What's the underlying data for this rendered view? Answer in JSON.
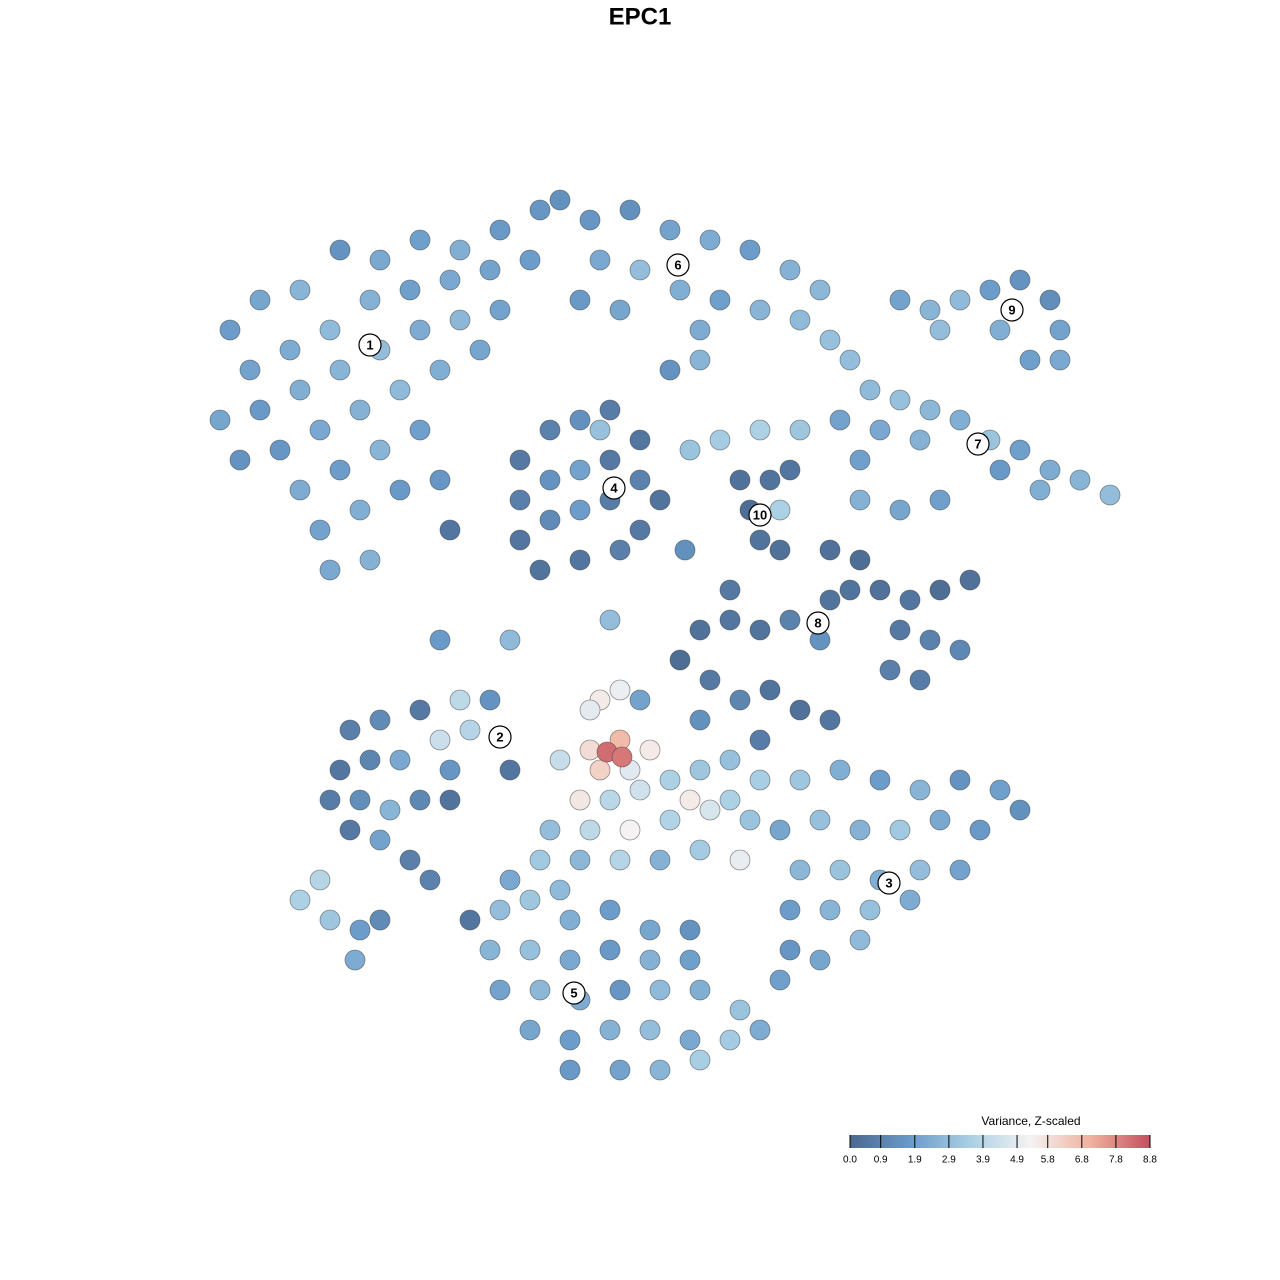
{
  "chart_data": {
    "type": "scatter",
    "title": "EPC1",
    "xlim": [
      0,
      128
    ],
    "ylim": [
      0,
      128
    ],
    "colorbar": {
      "title": "Variance, Z-scaled",
      "clim": [
        0,
        8.8
      ],
      "ticks": [
        {
          "value": 0,
          "label": "0.0"
        },
        0.9,
        1.9,
        2.9,
        3.9,
        4.9,
        5.8,
        6.8,
        7.8,
        8.8
      ],
      "colorscale": [
        "#4a6890",
        "#6a9bc9",
        "#a9cfe4",
        "#f4f3f3",
        "#f0b29e",
        "#c4505f"
      ]
    },
    "clusters": [
      {
        "label": "1",
        "x": 37,
        "y": 93.5
      },
      {
        "label": "2",
        "x": 50,
        "y": 54.3
      },
      {
        "label": "3",
        "x": 88.9,
        "y": 39.7
      },
      {
        "label": "4",
        "x": 61.4,
        "y": 79.2
      },
      {
        "label": "5",
        "x": 57.4,
        "y": 28.7
      },
      {
        "label": "6",
        "x": 67.8,
        "y": 101.5
      },
      {
        "label": "7",
        "x": 97.8,
        "y": 83.6
      },
      {
        "label": "8",
        "x": 81.8,
        "y": 65.7
      },
      {
        "label": "9",
        "x": 101.2,
        "y": 97
      },
      {
        "label": "10",
        "x": 76,
        "y": 76.5
      }
    ],
    "x": [
      23,
      26,
      30,
      34,
      38,
      42,
      46,
      50,
      54,
      56,
      25,
      29,
      33,
      37,
      41,
      45,
      49,
      53,
      22,
      26,
      30,
      34,
      38,
      42,
      46,
      50,
      28,
      32,
      36,
      40,
      44,
      48,
      30,
      34,
      38,
      42,
      32,
      36,
      40,
      33,
      37,
      24,
      44,
      59,
      63,
      67,
      71,
      75,
      79,
      82,
      60,
      64,
      68,
      72,
      76,
      80,
      83,
      58,
      62,
      70,
      85,
      67,
      70,
      90,
      93,
      96,
      99,
      102,
      105,
      106,
      100,
      94,
      103,
      106,
      87,
      90,
      93,
      96,
      99,
      102,
      105,
      108,
      111,
      88,
      92,
      100,
      104,
      86,
      69,
      72,
      76,
      80,
      84,
      86,
      90,
      94,
      52,
      55,
      58,
      61,
      64,
      52,
      55,
      58,
      61,
      64,
      66,
      52,
      55,
      58,
      61,
      64,
      54,
      58,
      62,
      60,
      74,
      77,
      79,
      75,
      78,
      76,
      78,
      83,
      86,
      85,
      88,
      91,
      94,
      97,
      90,
      93,
      96,
      89,
      92,
      70,
      73,
      76,
      79,
      82,
      68,
      71,
      74,
      77,
      80,
      83,
      76,
      83,
      35,
      38,
      42,
      46,
      49,
      34,
      37,
      40,
      44,
      47,
      33,
      36,
      39,
      42,
      35,
      38,
      41,
      51,
      45,
      56,
      59,
      62,
      65,
      60,
      63,
      58,
      61,
      64,
      67,
      70,
      73,
      76,
      55,
      59,
      63,
      67,
      71,
      75,
      54,
      58,
      62,
      66,
      70,
      74,
      51,
      56,
      60,
      62,
      59,
      64,
      70,
      73,
      69,
      60.7,
      62.2,
      80,
      84,
      88,
      92,
      96,
      100,
      102,
      78,
      82,
      86,
      90,
      94,
      98,
      80,
      84,
      88,
      92,
      96,
      79,
      83,
      87,
      91,
      79,
      82,
      86,
      78,
      50,
      53,
      57,
      61,
      65,
      69,
      49,
      53,
      57,
      61,
      65,
      69,
      50,
      54,
      58,
      62,
      66,
      70,
      74,
      53,
      57,
      61,
      65,
      69,
      73,
      57,
      62,
      66,
      70,
      76,
      30,
      33,
      36,
      38,
      35.5,
      32,
      45,
      43,
      47,
      45,
      51,
      44,
      61,
      73,
      68.5
    ],
    "y": [
      95,
      98,
      99,
      103,
      102,
      104,
      103,
      105,
      107,
      108,
      91,
      93,
      95,
      98,
      99,
      100,
      101,
      102,
      86,
      87,
      89,
      91,
      93,
      95,
      96,
      97,
      83,
      85,
      87,
      89,
      91,
      93,
      79,
      81,
      83,
      85,
      75,
      77,
      79,
      71,
      72,
      82,
      80,
      106,
      107,
      105,
      104,
      103,
      101,
      99,
      102,
      101,
      99,
      98,
      97,
      96,
      94,
      98,
      97,
      95,
      92,
      91,
      92,
      98,
      97,
      98,
      99,
      100,
      98,
      95,
      95,
      95,
      92,
      92,
      89,
      88,
      87,
      86,
      84,
      83,
      81,
      80,
      78.5,
      85,
      84,
      81,
      79,
      82,
      83,
      84,
      85,
      85,
      86,
      78,
      77,
      78,
      82,
      85,
      86,
      87,
      84,
      78,
      80,
      81,
      82,
      80,
      78,
      74,
      76,
      77,
      78,
      75,
      71,
      72,
      73,
      85,
      80,
      80,
      81,
      77,
      77,
      74,
      73,
      73,
      72,
      69,
      69,
      68,
      69,
      70,
      65,
      64,
      63,
      61,
      60,
      65,
      66,
      65,
      66,
      64,
      62,
      60,
      58,
      59,
      57,
      56,
      54,
      68,
      55,
      56,
      57,
      58,
      58,
      51,
      52,
      52,
      54,
      55,
      48,
      48,
      47,
      48,
      45,
      44,
      42,
      51,
      51,
      52,
      53,
      54,
      53,
      51,
      51,
      48,
      48,
      49,
      50,
      51,
      52,
      50,
      45,
      45,
      45,
      46,
      47,
      46,
      42,
      42,
      42,
      42,
      43,
      42,
      40,
      39,
      58,
      59,
      57,
      58,
      56,
      48,
      48,
      52.8,
      52.3,
      50,
      51,
      50,
      49,
      50,
      49,
      47,
      45,
      46,
      45,
      45,
      46,
      45,
      41,
      41,
      40,
      41,
      41,
      37,
      37,
      37,
      38,
      33,
      32,
      34,
      30,
      37,
      38,
      36,
      37,
      35,
      35,
      33,
      33,
      32,
      33,
      32,
      32,
      29,
      29,
      28,
      29,
      29,
      29,
      27,
      25,
      24,
      25,
      25,
      24,
      24,
      21,
      21,
      21,
      22,
      25,
      38,
      36,
      35,
      36,
      32,
      40,
      48,
      40,
      36,
      75,
      64,
      64,
      66,
      69,
      73
    ],
    "values": [
      1.8,
      2.1,
      2.6,
      1.5,
      2.2,
      1.9,
      2.4,
      1.7,
      1.6,
      1.4,
      2.0,
      2.3,
      2.8,
      2.5,
      1.9,
      2.2,
      2.0,
      1.8,
      2.1,
      1.7,
      2.4,
      2.6,
      2.9,
      2.3,
      2.7,
      2.0,
      1.6,
      2.2,
      2.5,
      2.8,
      2.4,
      2.1,
      2.3,
      1.8,
      2.6,
      1.9,
      2.0,
      2.4,
      1.7,
      2.2,
      2.5,
      1.5,
      1.6,
      1.6,
      1.4,
      2.0,
      2.3,
      1.8,
      2.5,
      2.7,
      2.2,
      2.9,
      2.4,
      1.9,
      2.6,
      2.8,
      3.0,
      1.7,
      2.1,
      2.3,
      2.9,
      1.5,
      2.6,
      2.0,
      2.6,
      2.8,
      1.8,
      1.5,
      1.3,
      2.0,
      2.4,
      2.9,
      1.9,
      2.2,
      2.8,
      3.0,
      2.7,
      2.4,
      3.1,
      1.9,
      2.3,
      2.6,
      2.9,
      2.2,
      2.5,
      1.7,
      2.4,
      1.9,
      3.1,
      3.4,
      3.6,
      3.2,
      2.0,
      2.5,
      2.1,
      1.9,
      0.6,
      0.9,
      1.4,
      0.7,
      0.5,
      0.8,
      1.5,
      2.0,
      0.6,
      0.9,
      0.4,
      0.5,
      1.2,
      1.8,
      0.7,
      0.6,
      0.4,
      0.5,
      0.8,
      3.0,
      0.3,
      0.4,
      0.5,
      0.2,
      3.6,
      0.4,
      0.3,
      0.3,
      0.2,
      0.4,
      0.3,
      0.5,
      0.2,
      0.3,
      0.6,
      0.9,
      1.1,
      0.8,
      0.7,
      0.3,
      0.5,
      0.4,
      0.9,
      1.5,
      0.2,
      0.6,
      1.0,
      0.4,
      0.3,
      0.5,
      0.7,
      0.4,
      0.8,
      1.2,
      0.6,
      4.0,
      1.5,
      0.5,
      1.0,
      2.2,
      4.3,
      3.8,
      0.7,
      1.3,
      2.6,
      1.1,
      0.6,
      2.0,
      0.8,
      0.5,
      1.6,
      4.2,
      5.9,
      6.8,
      5.5,
      6.2,
      4.8,
      5.6,
      3.9,
      4.4,
      3.6,
      3.2,
      3.0,
      3.5,
      2.9,
      4.0,
      5.3,
      3.7,
      4.6,
      3.1,
      3.3,
      2.7,
      3.8,
      2.5,
      3.4,
      5.0,
      2.2,
      2.8,
      5.5,
      5.1,
      4.9,
      2.0,
      1.4,
      3.6,
      5.5,
      8.3,
      8.1,
      3.2,
      2.4,
      1.8,
      2.6,
      1.5,
      1.9,
      1.4,
      2.1,
      3.0,
      2.5,
      3.3,
      2.2,
      1.7,
      2.7,
      3.1,
      2.4,
      2.9,
      2.0,
      1.8,
      2.6,
      3.0,
      2.3,
      1.6,
      2.1,
      2.8,
      1.9,
      2.9,
      3.2,
      2.4,
      1.8,
      2.1,
      1.5,
      2.6,
      3.0,
      2.2,
      1.7,
      2.5,
      1.9,
      2.0,
      2.7,
      2.3,
      1.6,
      2.8,
      2.4,
      3.1,
      2.1,
      1.8,
      2.5,
      2.9,
      2.2,
      3.4,
      1.7,
      2.0,
      2.6,
      3.5,
      2.3,
      3.6,
      3.2,
      1.8,
      1.2,
      2.3,
      3.8,
      0.4,
      0.9,
      0.5,
      0.5,
      2.8,
      1.7,
      2.9,
      0.6,
      1.4
    ]
  }
}
